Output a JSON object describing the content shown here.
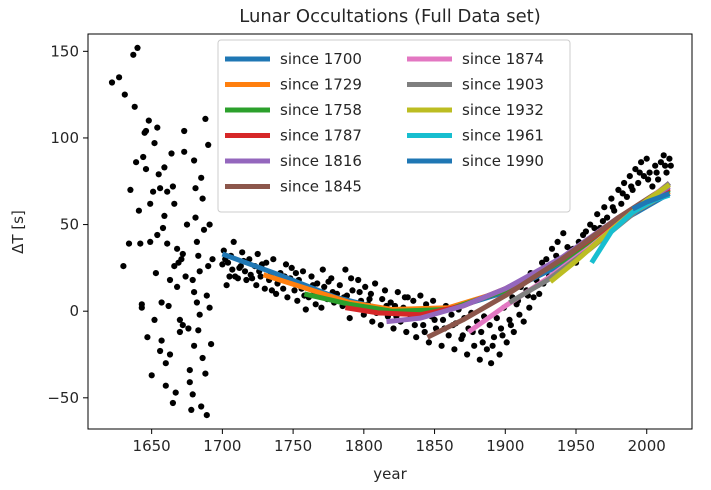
{
  "chart_data": {
    "type": "scatter",
    "title": "Lunar Occultations (Full Data set)",
    "xlabel": "year",
    "ylabel": "ΔT [s]",
    "xlim": [
      1605,
      2032
    ],
    "ylim": [
      -68,
      160
    ],
    "x_ticks": [
      1650,
      1700,
      1750,
      1800,
      1850,
      1900,
      1950,
      2000
    ],
    "y_ticks": [
      -50,
      0,
      50,
      100,
      150
    ],
    "grid": false,
    "legend_position": "top-center",
    "scatter_color": "#000000",
    "points": [
      [
        1622,
        132
      ],
      [
        1627,
        135
      ],
      [
        1630,
        26
      ],
      [
        1631,
        125
      ],
      [
        1634,
        39
      ],
      [
        1635,
        70
      ],
      [
        1637,
        148
      ],
      [
        1638,
        118
      ],
      [
        1639,
        86
      ],
      [
        1640,
        152
      ],
      [
        1641,
        58
      ],
      [
        1642,
        39
      ],
      [
        1643,
        2
      ],
      [
        1643,
        4
      ],
      [
        1644,
        89
      ],
      [
        1645,
        103
      ],
      [
        1646,
        82
      ],
      [
        1646,
        104
      ],
      [
        1647,
        -15
      ],
      [
        1648,
        110
      ],
      [
        1649,
        62
      ],
      [
        1649,
        40
      ],
      [
        1650,
        -37
      ],
      [
        1651,
        69
      ],
      [
        1652,
        -5
      ],
      [
        1652,
        97
      ],
      [
        1653,
        22
      ],
      [
        1654,
        44
      ],
      [
        1654,
        106
      ],
      [
        1655,
        79
      ],
      [
        1656,
        71
      ],
      [
        1656,
        -23
      ],
      [
        1657,
        -17
      ],
      [
        1657,
        5
      ],
      [
        1658,
        48
      ],
      [
        1659,
        55
      ],
      [
        1659,
        83
      ],
      [
        1660,
        -43
      ],
      [
        1660,
        -30
      ],
      [
        1661,
        69
      ],
      [
        1661,
        39
      ],
      [
        1662,
        3
      ],
      [
        1663,
        18
      ],
      [
        1663,
        -25
      ],
      [
        1664,
        91
      ],
      [
        1665,
        72
      ],
      [
        1665,
        -53
      ],
      [
        1666,
        62
      ],
      [
        1666,
        26
      ],
      [
        1667,
        -47
      ],
      [
        1668,
        14
      ],
      [
        1668,
        36
      ],
      [
        1669,
        28
      ],
      [
        1670,
        -5
      ],
      [
        1670,
        -12
      ],
      [
        1671,
        30
      ],
      [
        1672,
        33
      ],
      [
        1672,
        -8
      ],
      [
        1673,
        104
      ],
      [
        1673,
        92
      ],
      [
        1674,
        20
      ],
      [
        1675,
        50
      ],
      [
        1676,
        -10
      ],
      [
        1677,
        -34
      ],
      [
        1677,
        -41
      ],
      [
        1678,
        -57
      ],
      [
        1679,
        -48
      ],
      [
        1679,
        18
      ],
      [
        1680,
        11
      ],
      [
        1680,
        -20
      ],
      [
        1680,
        87
      ],
      [
        1681,
        71
      ],
      [
        1681,
        54
      ],
      [
        1682,
        5
      ],
      [
        1682,
        40
      ],
      [
        1683,
        -11
      ],
      [
        1683,
        32
      ],
      [
        1684,
        -2
      ],
      [
        1684,
        23
      ],
      [
        1685,
        77
      ],
      [
        1685,
        -55
      ],
      [
        1686,
        65
      ],
      [
        1686,
        -27
      ],
      [
        1687,
        47
      ],
      [
        1688,
        111
      ],
      [
        1688,
        -36
      ],
      [
        1689,
        9
      ],
      [
        1689,
        -60
      ],
      [
        1690,
        26
      ],
      [
        1690,
        96
      ],
      [
        1691,
        2
      ],
      [
        1691,
        50
      ],
      [
        1692,
        -19
      ],
      [
        1693,
        30
      ],
      [
        1700,
        27
      ],
      [
        1701,
        35
      ],
      [
        1703,
        15
      ],
      [
        1704,
        28
      ],
      [
        1705,
        20
      ],
      [
        1706,
        32
      ],
      [
        1708,
        40
      ],
      [
        1709,
        20
      ],
      [
        1711,
        19
      ],
      [
        1712,
        25
      ],
      [
        1713,
        26
      ],
      [
        1714,
        34
      ],
      [
        1716,
        23
      ],
      [
        1717,
        18
      ],
      [
        1719,
        30
      ],
      [
        1720,
        21
      ],
      [
        1721,
        19
      ],
      [
        1723,
        26
      ],
      [
        1724,
        15
      ],
      [
        1725,
        33
      ],
      [
        1727,
        20
      ],
      [
        1728,
        27
      ],
      [
        1730,
        13
      ],
      [
        1731,
        28
      ],
      [
        1733,
        18
      ],
      [
        1734,
        21
      ],
      [
        1736,
        30
      ],
      [
        1738,
        10
      ],
      [
        1739,
        16
      ],
      [
        1741,
        22
      ],
      [
        1743,
        13
      ],
      [
        1745,
        27
      ],
      [
        1746,
        8
      ],
      [
        1748,
        19
      ],
      [
        1749,
        25
      ],
      [
        1751,
        12
      ],
      [
        1753,
        6
      ],
      [
        1754,
        18
      ],
      [
        1756,
        13
      ],
      [
        1757,
        23
      ],
      [
        1759,
        1
      ],
      [
        1760,
        14
      ],
      [
        1761,
        8
      ],
      [
        1763,
        20
      ],
      [
        1765,
        11
      ],
      [
        1766,
        4
      ],
      [
        1767,
        16
      ],
      [
        1769,
        9
      ],
      [
        1771,
        24
      ],
      [
        1772,
        14
      ],
      [
        1774,
        7
      ],
      [
        1775,
        17
      ],
      [
        1777,
        19
      ],
      [
        1779,
        5
      ],
      [
        1781,
        10
      ],
      [
        1783,
        15
      ],
      [
        1785,
        3
      ],
      [
        1787,
        24
      ],
      [
        1788,
        9
      ],
      [
        1790,
        -4
      ],
      [
        1792,
        12
      ],
      [
        1794,
        2
      ],
      [
        1796,
        18
      ],
      [
        1798,
        6
      ],
      [
        1800,
        -2
      ],
      [
        1801,
        14
      ],
      [
        1803,
        4
      ],
      [
        1805,
        10
      ],
      [
        1806,
        -6
      ],
      [
        1808,
        16
      ],
      [
        1810,
        1
      ],
      [
        1812,
        -8
      ],
      [
        1813,
        7
      ],
      [
        1815,
        12
      ],
      [
        1817,
        -3
      ],
      [
        1819,
        5
      ],
      [
        1821,
        -10
      ],
      [
        1822,
        3
      ],
      [
        1824,
        11
      ],
      [
        1826,
        -6
      ],
      [
        1828,
        2
      ],
      [
        1830,
        -12
      ],
      [
        1831,
        8
      ],
      [
        1833,
        -4
      ],
      [
        1835,
        6
      ],
      [
        1837,
        -15
      ],
      [
        1839,
        0
      ],
      [
        1840,
        9
      ],
      [
        1842,
        -8
      ],
      [
        1844,
        4
      ],
      [
        1846,
        -18
      ],
      [
        1848,
        -3
      ],
      [
        1849,
        6
      ],
      [
        1851,
        -10
      ],
      [
        1853,
        1
      ],
      [
        1855,
        -20
      ],
      [
        1856,
        -5
      ],
      [
        1858,
        3
      ],
      [
        1860,
        -14
      ],
      [
        1862,
        -2
      ],
      [
        1864,
        -22
      ],
      [
        1865,
        -7
      ],
      [
        1867,
        1
      ],
      [
        1869,
        -16
      ],
      [
        1871,
        -4
      ],
      [
        1873,
        -25
      ],
      [
        1874,
        -10
      ],
      [
        1876,
        -1
      ],
      [
        1878,
        -20
      ],
      [
        1880,
        -6
      ],
      [
        1882,
        -28
      ],
      [
        1883,
        -12
      ],
      [
        1885,
        -3
      ],
      [
        1887,
        -22
      ],
      [
        1889,
        -8
      ],
      [
        1890,
        -30
      ],
      [
        1892,
        -15
      ],
      [
        1894,
        -4
      ],
      [
        1896,
        -25
      ],
      [
        1897,
        -10
      ],
      [
        1899,
        2
      ],
      [
        1901,
        -18
      ],
      [
        1903,
        -5
      ],
      [
        1905,
        8
      ],
      [
        1906,
        -12
      ],
      [
        1908,
        4
      ],
      [
        1910,
        -2
      ],
      [
        1911,
        14
      ],
      [
        1913,
        -6
      ],
      [
        1915,
        12
      ],
      [
        1917,
        2
      ],
      [
        1918,
        22
      ],
      [
        1920,
        8
      ],
      [
        1922,
        18
      ],
      [
        1924,
        10
      ],
      [
        1926,
        28
      ],
      [
        1927,
        16
      ],
      [
        1929,
        30
      ],
      [
        1931,
        20
      ],
      [
        1933,
        36
      ],
      [
        1935,
        25
      ],
      [
        1937,
        40
      ],
      [
        1939,
        28
      ],
      [
        1941,
        45
      ],
      [
        1943,
        32
      ],
      [
        1945,
        30
      ],
      [
        1948,
        36
      ],
      [
        1950,
        28
      ],
      [
        1952,
        40
      ],
      [
        1955,
        44
      ],
      [
        1958,
        38
      ],
      [
        1960,
        50
      ],
      [
        1962,
        42
      ],
      [
        1965,
        56
      ],
      [
        1967,
        48
      ],
      [
        1970,
        60
      ],
      [
        1972,
        54
      ],
      [
        1975,
        65
      ],
      [
        1977,
        58
      ],
      [
        1980,
        70
      ],
      [
        1982,
        62
      ],
      [
        1984,
        74
      ],
      [
        1986,
        66
      ],
      [
        1988,
        78
      ],
      [
        1990,
        70
      ],
      [
        1992,
        82
      ],
      [
        1994,
        74
      ],
      [
        1996,
        86
      ],
      [
        1998,
        78
      ],
      [
        2000,
        88
      ],
      [
        2002,
        80
      ],
      [
        2004,
        72
      ],
      [
        2006,
        84
      ],
      [
        2008,
        76
      ],
      [
        2010,
        86
      ],
      [
        2012,
        90
      ],
      [
        2014,
        80
      ],
      [
        2016,
        88
      ],
      [
        2017,
        84
      ],
      [
        1702,
        30
      ],
      [
        1707,
        24
      ],
      [
        1715,
        29
      ],
      [
        1726,
        23
      ],
      [
        1735,
        12
      ],
      [
        1744,
        20
      ],
      [
        1752,
        22
      ],
      [
        1758,
        9
      ],
      [
        1764,
        15
      ],
      [
        1770,
        2
      ],
      [
        1778,
        11
      ],
      [
        1786,
        8
      ],
      [
        1791,
        19
      ],
      [
        1797,
        11
      ],
      [
        1804,
        7
      ],
      [
        1809,
        -1
      ],
      [
        1816,
        3
      ],
      [
        1823,
        -3
      ],
      [
        1829,
        8
      ],
      [
        1836,
        -8
      ],
      [
        1843,
        -12
      ],
      [
        1850,
        -5
      ],
      [
        1857,
        -10
      ],
      [
        1863,
        -8
      ],
      [
        1870,
        -14
      ],
      [
        1877,
        -12
      ],
      [
        1884,
        -18
      ],
      [
        1891,
        -20
      ],
      [
        1898,
        -14
      ],
      [
        1904,
        -8
      ],
      [
        1909,
        6
      ],
      [
        1916,
        9
      ],
      [
        1923,
        15
      ],
      [
        1930,
        24
      ],
      [
        1936,
        32
      ],
      [
        1944,
        37
      ],
      [
        1951,
        35
      ],
      [
        1957,
        46
      ],
      [
        1963,
        48
      ],
      [
        1969,
        52
      ],
      [
        1976,
        60
      ],
      [
        1983,
        68
      ],
      [
        1989,
        72
      ],
      [
        1995,
        80
      ],
      [
        2001,
        76
      ],
      [
        2007,
        80
      ],
      [
        2013,
        84
      ]
    ],
    "series": [
      {
        "name": "since 1700",
        "color": "#1f77b4",
        "x": [
          1700,
          1740,
          1780,
          1820,
          1860,
          1900,
          1940,
          1980,
          2016
        ],
        "y": [
          33,
          21,
          8,
          0,
          1,
          11,
          27,
          51,
          68
        ]
      },
      {
        "name": "since 1729",
        "color": "#ff7f0e",
        "x": [
          1729,
          1760,
          1790,
          1820,
          1860,
          1900,
          1940,
          1980,
          2016
        ],
        "y": [
          21,
          13,
          5,
          1,
          2,
          12,
          29,
          52,
          69
        ]
      },
      {
        "name": "since 1758",
        "color": "#2ca02c",
        "x": [
          1758,
          1790,
          1820,
          1860,
          1900,
          1940,
          1980,
          2016
        ],
        "y": [
          10,
          4,
          0,
          1,
          12,
          29,
          52,
          70
        ]
      },
      {
        "name": "since 1787",
        "color": "#d62728",
        "x": [
          1787,
          1810,
          1840,
          1870,
          1900,
          1940,
          1980,
          2016
        ],
        "y": [
          2,
          -1,
          -2,
          3,
          13,
          30,
          53,
          71
        ]
      },
      {
        "name": "since 1816",
        "color": "#9467bd",
        "x": [
          1816,
          1840,
          1870,
          1900,
          1940,
          1980,
          2016
        ],
        "y": [
          -6,
          -4,
          3,
          13,
          31,
          54,
          72
        ]
      },
      {
        "name": "since 1845",
        "color": "#8c564b",
        "x": [
          1845,
          1870,
          1900,
          1940,
          1980,
          2016
        ],
        "y": [
          -15,
          -5,
          9,
          30,
          54,
          73
        ]
      },
      {
        "name": "since 1874",
        "color": "#e377c2",
        "x": [
          1874,
          1900,
          1930,
          1960,
          1990,
          2016
        ],
        "y": [
          -12,
          3,
          19,
          37,
          57,
          74
        ]
      },
      {
        "name": "since 1903",
        "color": "#7f7f7f",
        "x": [
          1903,
          1930,
          1960,
          1990,
          2016
        ],
        "y": [
          5,
          18,
          36,
          56,
          74
        ]
      },
      {
        "name": "since 1932",
        "color": "#bcbd22",
        "x": [
          1932,
          1950,
          1975,
          2000,
          2016
        ],
        "y": [
          17,
          29,
          47,
          64,
          73
        ]
      },
      {
        "name": "since 1961",
        "color": "#17becf",
        "x": [
          1961,
          1975,
          1990,
          2005,
          2016
        ],
        "y": [
          28,
          46,
          57,
          64,
          67
        ]
      },
      {
        "name": "since 1990",
        "color": "#1f77b4",
        "x": [
          1990,
          2000,
          2010,
          2016
        ],
        "y": [
          59,
          63,
          66,
          68
        ]
      }
    ]
  }
}
